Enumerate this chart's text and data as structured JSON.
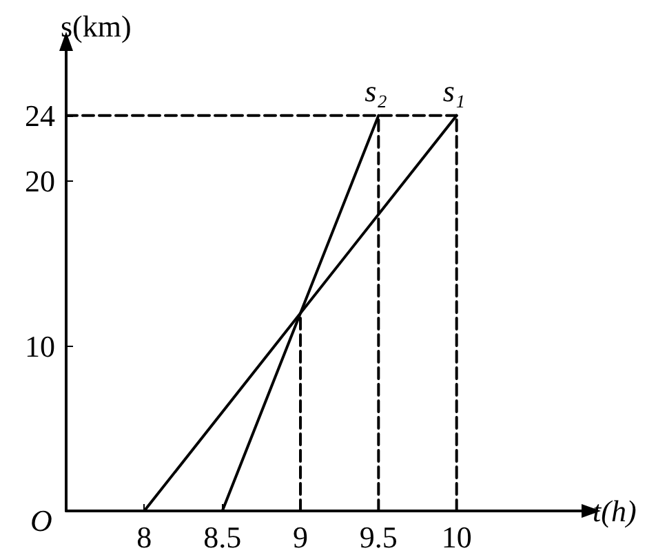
{
  "chart_data": {
    "type": "line",
    "xlabel": "t(h)",
    "ylabel": "s(km)",
    "annotations": [
      "O"
    ],
    "xlim": [
      7.5,
      10.8
    ],
    "xticks": [
      8,
      8.5,
      9,
      9.5,
      10
    ],
    "ylim": [
      0,
      28
    ],
    "yticks": [
      10,
      20,
      24
    ],
    "grid": false,
    "legend": false,
    "marker": "none",
    "series": [
      {
        "name": "s₁",
        "color": "#000000",
        "x": [
          8,
          10
        ],
        "values": [
          0,
          24
        ],
        "line_style": "solid"
      },
      {
        "name": "s₂",
        "color": "#000000",
        "x": [
          8.5,
          9.5
        ],
        "values": [
          0,
          24
        ],
        "line_style": "solid"
      },
      {
        "color": "#000000",
        "x": [
          7.5,
          10
        ],
        "values": [
          24,
          24
        ],
        "line_style": "dashed"
      },
      {
        "color": "#000000",
        "x": [
          9,
          9
        ],
        "values": [
          0,
          12
        ],
        "line_style": "dashed"
      },
      {
        "color": "#000000",
        "x": [
          9.5,
          9.5
        ],
        "values": [
          0,
          24
        ],
        "line_style": "dashed"
      },
      {
        "color": "#000000",
        "x": [
          10,
          10
        ],
        "values": [
          0,
          24
        ],
        "line_style": "dashed"
      }
    ]
  }
}
